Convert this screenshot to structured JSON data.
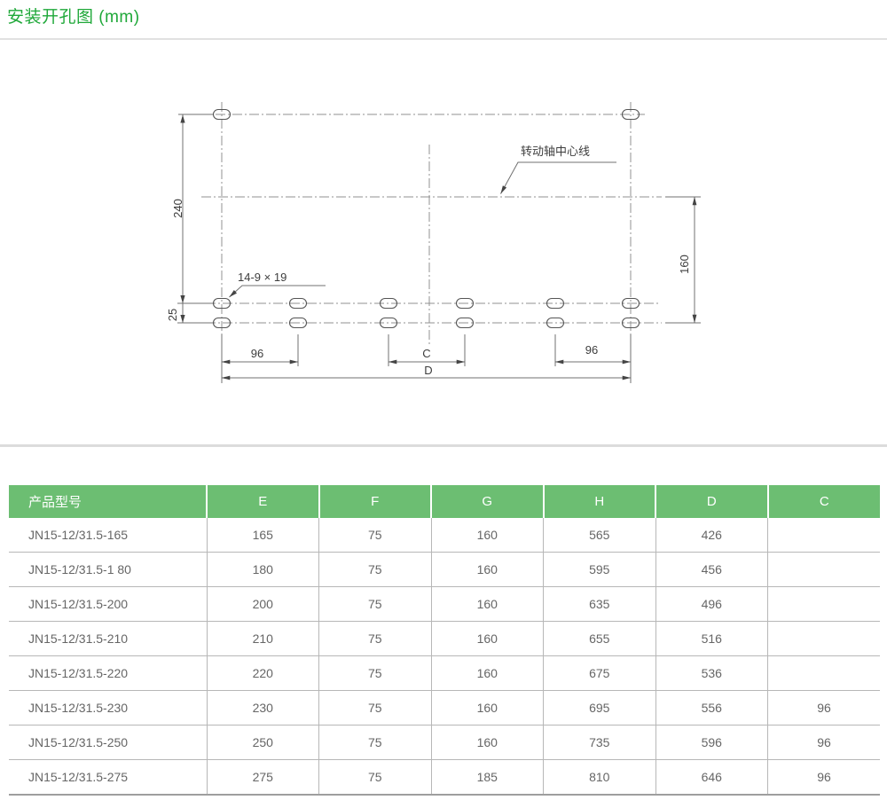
{
  "page": {
    "title": "安装开孔图 (mm)"
  },
  "colors": {
    "title_green": "#1fa839",
    "header_green": "#6cbe72"
  },
  "drawing": {
    "dims": {
      "v240": "240",
      "v25": "25",
      "v160": "160",
      "left96": "96",
      "right96": "96",
      "c": "C",
      "d": "D"
    },
    "hole_note": "14-9 × 19",
    "axis_note": "转动轴中心线"
  },
  "table": {
    "columns": [
      "产品型号",
      "E",
      "F",
      "G",
      "H",
      "D",
      "C"
    ],
    "rows": [
      [
        "JN15-12/31.5-165",
        "165",
        "75",
        "160",
        "565",
        "426",
        ""
      ],
      [
        "JN15-12/31.5-1 80",
        "180",
        "75",
        "160",
        "595",
        "456",
        ""
      ],
      [
        "JN15-12/31.5-200",
        "200",
        "75",
        "160",
        "635",
        "496",
        ""
      ],
      [
        "JN15-12/31.5-210",
        "210",
        "75",
        "160",
        "655",
        "516",
        ""
      ],
      [
        "JN15-12/31.5-220",
        "220",
        "75",
        "160",
        "675",
        "536",
        ""
      ],
      [
        "JN15-12/31.5-230",
        "230",
        "75",
        "160",
        "695",
        "556",
        "96"
      ],
      [
        "JN15-12/31.5-250",
        "250",
        "75",
        "160",
        "735",
        "596",
        "96"
      ],
      [
        "JN15-12/31.5-275",
        "275",
        "75",
        "185",
        "810",
        "646",
        "96"
      ]
    ]
  }
}
